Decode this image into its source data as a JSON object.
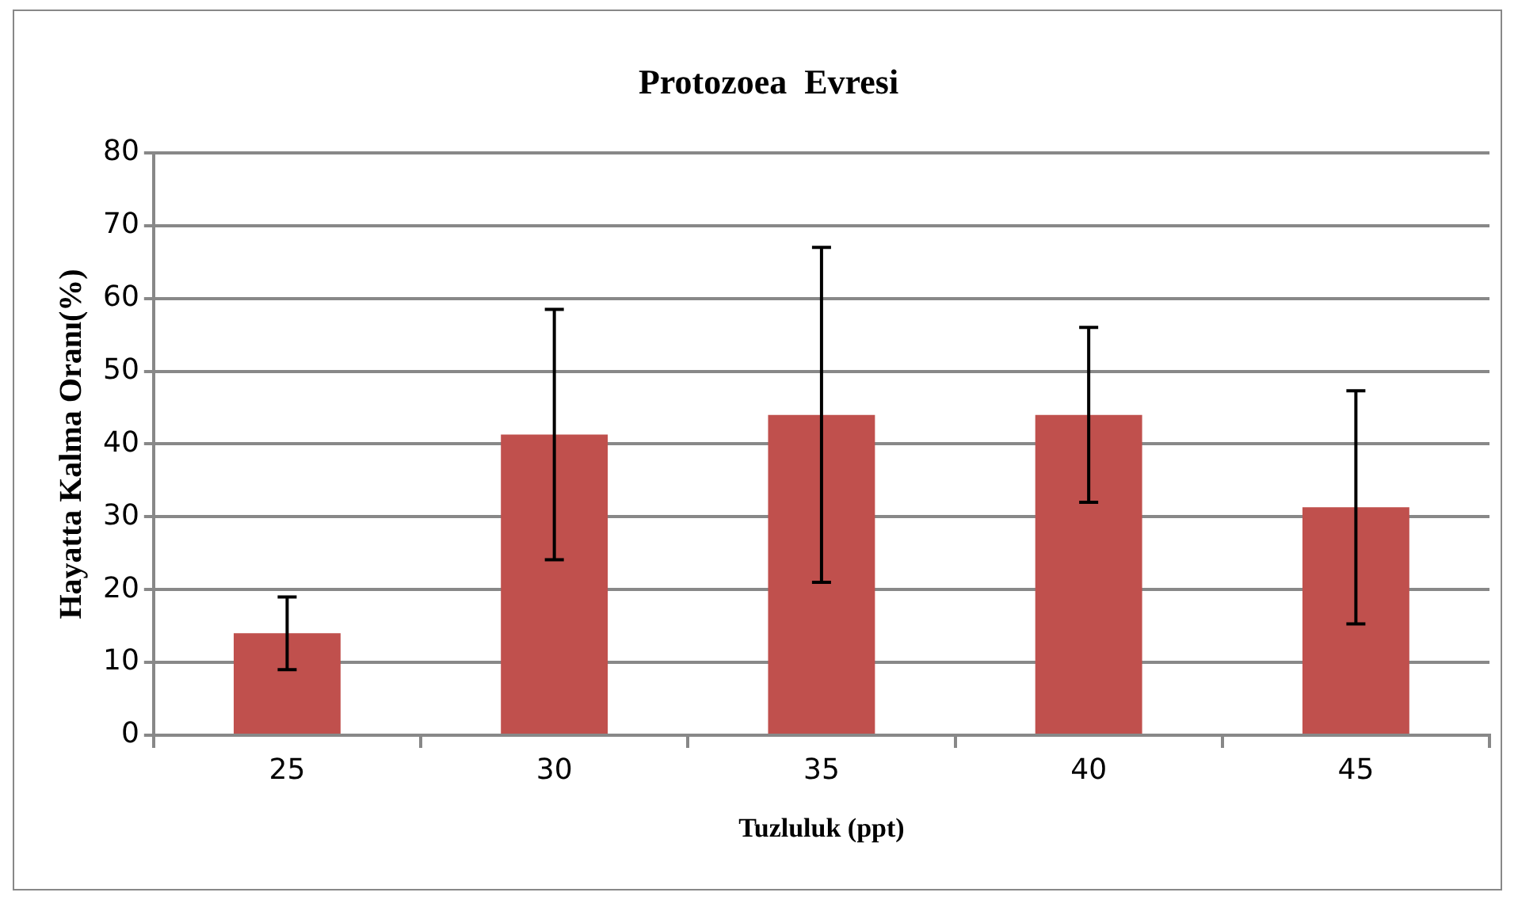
{
  "chart_data": {
    "type": "bar",
    "title": "Protozoea  Evresi",
    "xlabel": "Tuzluluk (ppt)",
    "ylabel": "Hayatta Kalma Oranı(%)",
    "categories": [
      "25",
      "30",
      "35",
      "40",
      "45"
    ],
    "values": [
      14,
      41.3,
      44,
      44,
      31.3
    ],
    "errors": [
      5,
      17.2,
      23,
      12,
      16
    ],
    "color": "#c0504d",
    "ylim": [
      0,
      80
    ],
    "yticks": [
      0,
      10,
      20,
      30,
      40,
      50,
      60,
      70,
      80
    ],
    "grid": "y",
    "legend": false
  }
}
